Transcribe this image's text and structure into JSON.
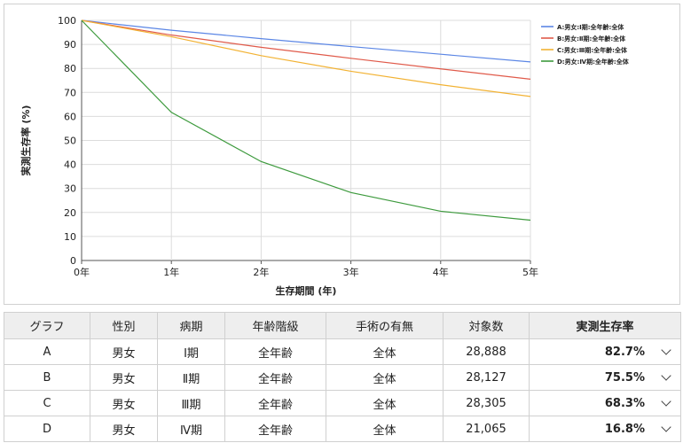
{
  "chart_data": {
    "type": "line",
    "xlabel": "生存期間 (年)",
    "ylabel": "実測生存率 (%)",
    "x": [
      0,
      1,
      2,
      3,
      4,
      5
    ],
    "x_tick_labels": [
      "0年",
      "1年",
      "2年",
      "3年",
      "4年",
      "5年"
    ],
    "y_ticks": [
      0,
      10,
      20,
      30,
      40,
      50,
      60,
      70,
      80,
      90,
      100
    ],
    "xlim": [
      0,
      5
    ],
    "ylim": [
      0,
      100
    ],
    "grid": true,
    "legend_position": "top-right",
    "series": [
      {
        "name": "A:男女:Ⅰ期:全年齢:全体",
        "color": "#5b86e5",
        "values": [
          100,
          95.9,
          92.4,
          89.1,
          85.9,
          82.7
        ]
      },
      {
        "name": "B:男女:Ⅱ期:全年齢:全体",
        "color": "#e05a4a",
        "values": [
          100,
          93.9,
          88.8,
          84.2,
          79.8,
          75.5
        ]
      },
      {
        "name": "C:男女:Ⅲ期:全年齢:全体",
        "color": "#f2b233",
        "values": [
          100,
          93.2,
          85.3,
          78.8,
          73.2,
          68.3
        ]
      },
      {
        "name": "D:男女:Ⅳ期:全年齢:全体",
        "color": "#3d9a3d",
        "values": [
          100,
          61.7,
          41.2,
          28.3,
          20.5,
          16.8
        ]
      }
    ]
  },
  "table": {
    "headers": {
      "graph": "グラフ",
      "sex": "性別",
      "stage": "病期",
      "age": "年齢階級",
      "surgery": "手術の有無",
      "count": "対象数",
      "rate": "実測生存率"
    },
    "rows": [
      {
        "graph": "A",
        "sex": "男女",
        "stage": "Ⅰ期",
        "age": "全年齢",
        "surgery": "全体",
        "count": "28,888",
        "rate": "82.7%"
      },
      {
        "graph": "B",
        "sex": "男女",
        "stage": "Ⅱ期",
        "age": "全年齢",
        "surgery": "全体",
        "count": "28,127",
        "rate": "75.5%"
      },
      {
        "graph": "C",
        "sex": "男女",
        "stage": "Ⅲ期",
        "age": "全年齢",
        "surgery": "全体",
        "count": "28,305",
        "rate": "68.3%"
      },
      {
        "graph": "D",
        "sex": "男女",
        "stage": "Ⅳ期",
        "age": "全年齢",
        "surgery": "全体",
        "count": "21,065",
        "rate": "16.8%"
      }
    ],
    "expand_icon": "chevron-down-icon"
  }
}
